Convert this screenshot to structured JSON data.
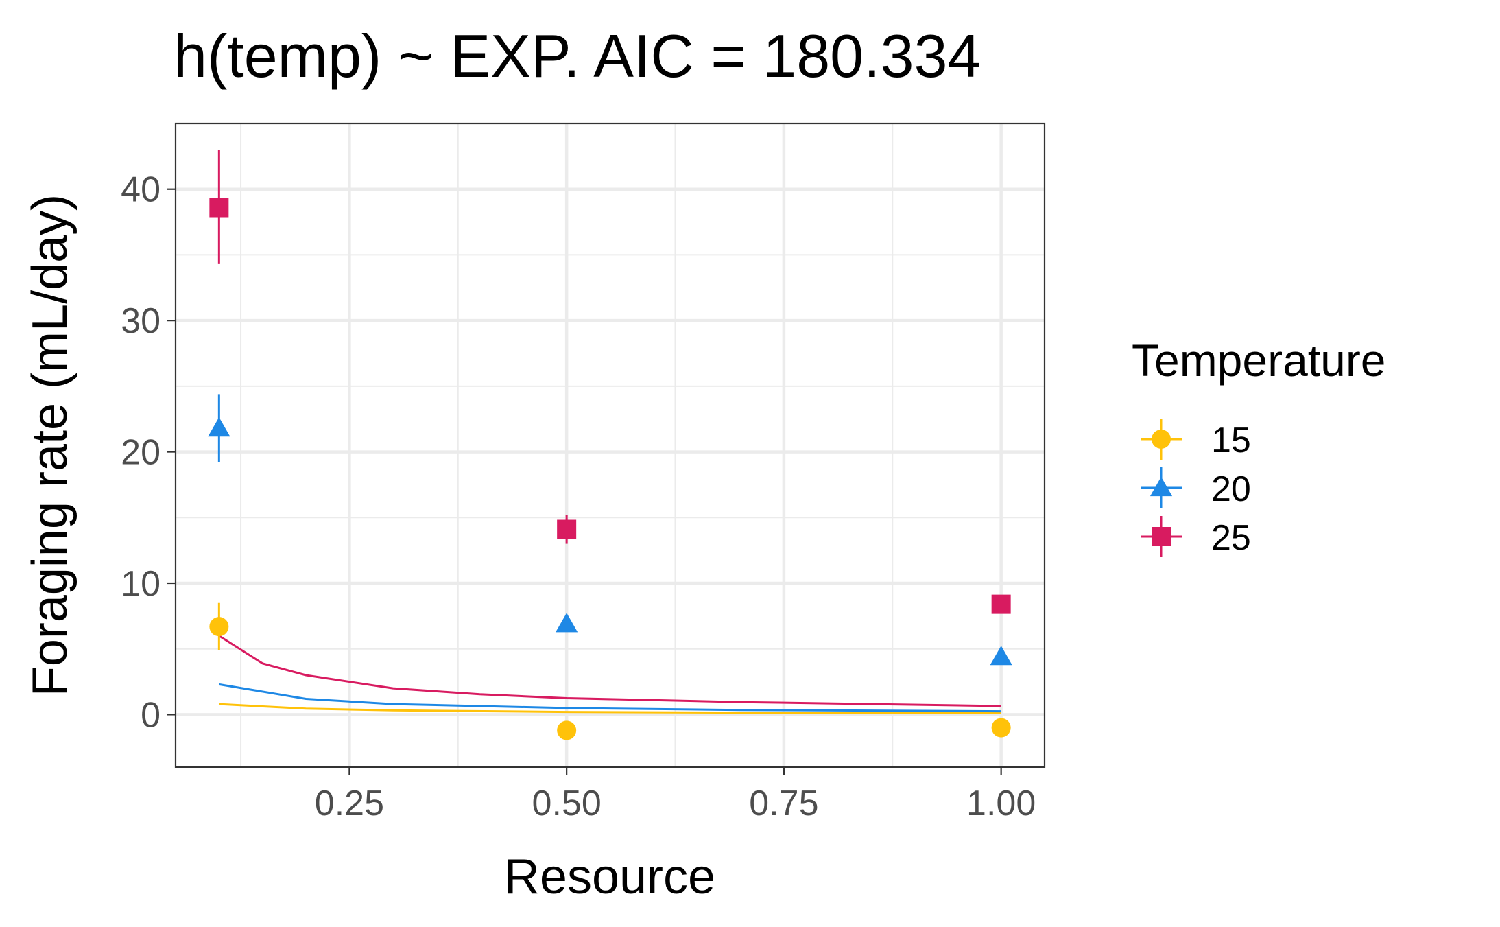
{
  "chart_data": {
    "type": "scatter",
    "title": "h(temp) ~ EXP. AIC = 180.334",
    "xlabel": "Resource",
    "ylabel": "Foraging rate (mL/day)",
    "xlim": [
      0.05,
      1.05
    ],
    "ylim": [
      -4,
      45
    ],
    "x_ticks": [
      0.25,
      0.5,
      0.75,
      1.0
    ],
    "x_tick_labels": [
      "0.25",
      "0.50",
      "0.75",
      "1.00"
    ],
    "y_ticks": [
      0,
      10,
      20,
      30,
      40
    ],
    "y_tick_labels": [
      "0",
      "10",
      "20",
      "30",
      "40"
    ],
    "grid": true,
    "legend": {
      "title": "Temperature",
      "position": "right"
    },
    "series": [
      {
        "name": "15",
        "color": "#FFC20A",
        "marker": "circle",
        "points": [
          {
            "x": 0.1,
            "y": 6.7,
            "ymin": 4.9,
            "ymax": 8.5
          },
          {
            "x": 0.5,
            "y": -1.2,
            "ymin": -1.6,
            "ymax": -0.8
          },
          {
            "x": 1.0,
            "y": -1.0,
            "ymin": -1.4,
            "ymax": -0.6
          }
        ],
        "curve": {
          "x": [
            0.1,
            0.2,
            0.3,
            0.5,
            0.7,
            1.0
          ],
          "y": [
            0.8,
            0.45,
            0.32,
            0.2,
            0.15,
            0.1
          ]
        }
      },
      {
        "name": "20",
        "color": "#1E88E5",
        "marker": "triangle",
        "points": [
          {
            "x": 0.1,
            "y": 21.8,
            "ymin": 19.2,
            "ymax": 24.4
          },
          {
            "x": 0.5,
            "y": 6.9,
            "ymin": 6.3,
            "ymax": 7.5
          },
          {
            "x": 1.0,
            "y": 4.4,
            "ymin": 3.9,
            "ymax": 4.9
          }
        ],
        "curve": {
          "x": [
            0.1,
            0.2,
            0.3,
            0.5,
            0.7,
            1.0
          ],
          "y": [
            2.3,
            1.2,
            0.8,
            0.5,
            0.35,
            0.25
          ]
        }
      },
      {
        "name": "25",
        "color": "#D81B60",
        "marker": "square",
        "points": [
          {
            "x": 0.1,
            "y": 38.6,
            "ymin": 34.3,
            "ymax": 43.0
          },
          {
            "x": 0.5,
            "y": 14.1,
            "ymin": 13.0,
            "ymax": 15.2
          },
          {
            "x": 1.0,
            "y": 8.4,
            "ymin": 8.0,
            "ymax": 8.8
          }
        ],
        "curve": {
          "x": [
            0.1,
            0.15,
            0.2,
            0.3,
            0.4,
            0.5,
            0.7,
            1.0
          ],
          "y": [
            6.0,
            3.9,
            3.0,
            2.0,
            1.55,
            1.25,
            0.95,
            0.65
          ]
        }
      }
    ]
  }
}
